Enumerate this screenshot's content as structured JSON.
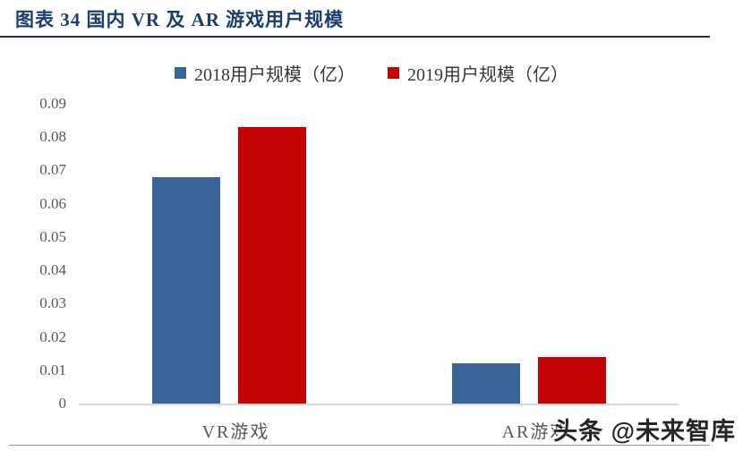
{
  "header": {
    "title": "图表 34 国内 VR 及 AR 游戏用户规模"
  },
  "watermark": {
    "text": "头条 @未来智库"
  },
  "colors": {
    "title": "#1C3D6E",
    "series_2018": "#3A6499",
    "series_2019": "#C40404",
    "axis_text": "#595959",
    "baseline": "#D9D9D9"
  },
  "chart_data": {
    "type": "bar",
    "categories": [
      "VR游戏",
      "AR游戏"
    ],
    "series": [
      {
        "name": "2018用户规模（亿）",
        "color": "#3A6499",
        "values": [
          0.068,
          0.012
        ]
      },
      {
        "name": "2019用户规模（亿）",
        "color": "#C40404",
        "values": [
          0.083,
          0.014
        ]
      }
    ],
    "title": "图表 34 国内 VR 及 AR 游戏用户规模",
    "xlabel": "",
    "ylabel": "",
    "ylim": [
      0,
      0.09
    ],
    "ytick_labels": [
      "0",
      "0.01",
      "0.02",
      "0.03",
      "0.04",
      "0.05",
      "0.06",
      "0.07",
      "0.08",
      "0.09"
    ],
    "grid": false,
    "legend_position": "top-center"
  }
}
